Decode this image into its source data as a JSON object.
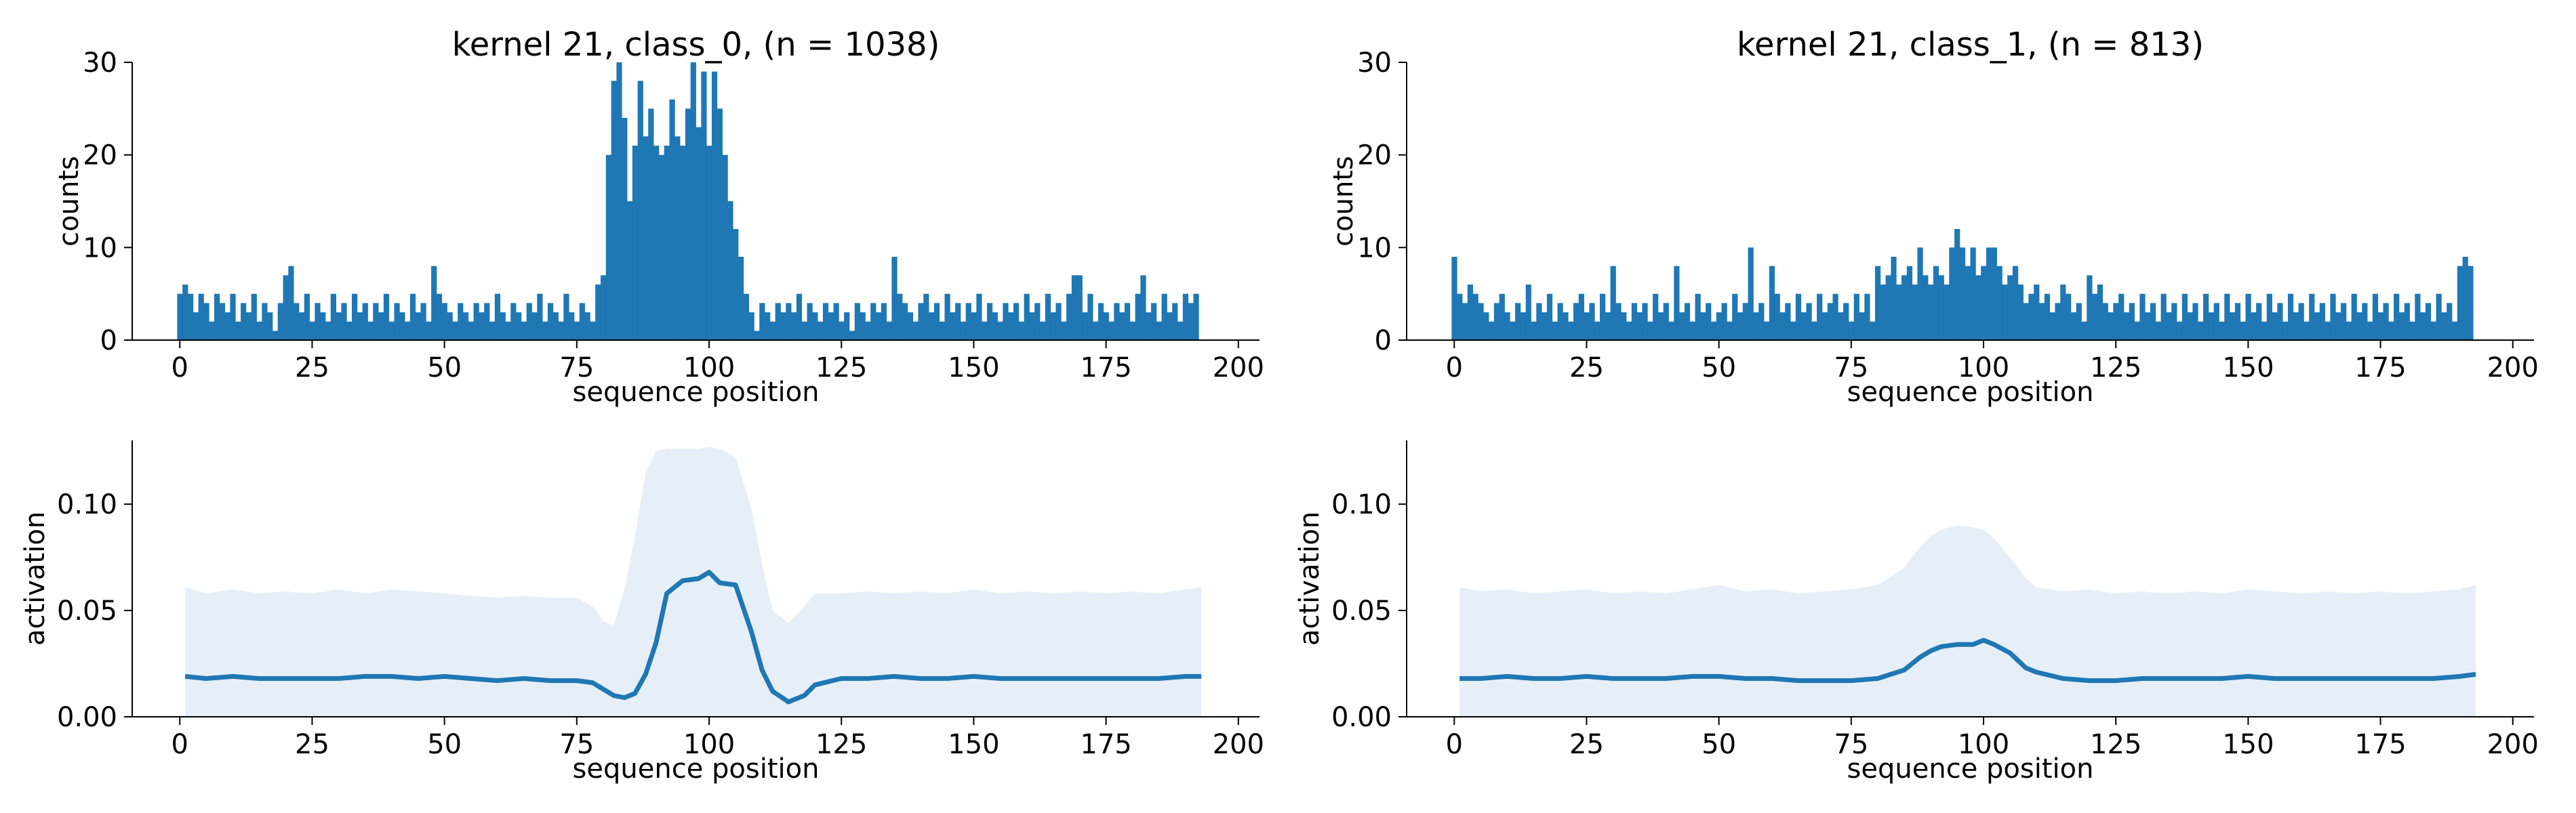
{
  "colors": {
    "bar": "#1f77b4",
    "line": "#1f77b4",
    "band": "#e6eff8",
    "axis": "#000000"
  },
  "chart_data": [
    {
      "type": "bar",
      "title": "kernel 21, class_0, (n = 1038)",
      "xlabel": "sequence position",
      "ylabel": "counts",
      "xlim": [
        -9,
        204
      ],
      "ylim": [
        0,
        30
      ],
      "xticks": [
        0,
        25,
        50,
        75,
        100,
        125,
        150,
        175,
        200
      ],
      "yticks": [
        0,
        10,
        20,
        30
      ],
      "x": [
        0,
        1,
        2,
        3,
        4,
        5,
        6,
        7,
        8,
        9,
        10,
        11,
        12,
        13,
        14,
        15,
        16,
        17,
        18,
        19,
        20,
        21,
        22,
        23,
        24,
        25,
        26,
        27,
        28,
        29,
        30,
        31,
        32,
        33,
        34,
        35,
        36,
        37,
        38,
        39,
        40,
        41,
        42,
        43,
        44,
        45,
        46,
        47,
        48,
        49,
        50,
        51,
        52,
        53,
        54,
        55,
        56,
        57,
        58,
        59,
        60,
        61,
        62,
        63,
        64,
        65,
        66,
        67,
        68,
        69,
        70,
        71,
        72,
        73,
        74,
        75,
        76,
        77,
        78,
        79,
        80,
        81,
        82,
        83,
        84,
        85,
        86,
        87,
        88,
        89,
        90,
        91,
        92,
        93,
        94,
        95,
        96,
        97,
        98,
        99,
        100,
        101,
        102,
        103,
        104,
        105,
        106,
        107,
        108,
        109,
        110,
        111,
        112,
        113,
        114,
        115,
        116,
        117,
        118,
        119,
        120,
        121,
        122,
        123,
        124,
        125,
        126,
        127,
        128,
        129,
        130,
        131,
        132,
        133,
        134,
        135,
        136,
        137,
        138,
        139,
        140,
        141,
        142,
        143,
        144,
        145,
        146,
        147,
        148,
        149,
        150,
        151,
        152,
        153,
        154,
        155,
        156,
        157,
        158,
        159,
        160,
        161,
        162,
        163,
        164,
        165,
        166,
        167,
        168,
        169,
        170,
        171,
        172,
        173,
        174,
        175,
        176,
        177,
        178,
        179,
        180,
        181,
        182,
        183,
        184,
        185,
        186,
        187,
        188,
        189,
        190,
        191,
        192
      ],
      "values": [
        5,
        6,
        5,
        3,
        5,
        4,
        2,
        5,
        4,
        3,
        5,
        2,
        4,
        3,
        5,
        2,
        4,
        3,
        1,
        4,
        7,
        8,
        4,
        3,
        5,
        2,
        4,
        3,
        2,
        5,
        3,
        4,
        2,
        5,
        3,
        4,
        2,
        4,
        3,
        5,
        2,
        4,
        3,
        2,
        5,
        3,
        4,
        2,
        8,
        5,
        4,
        3,
        2,
        4,
        3,
        2,
        4,
        3,
        4,
        2,
        5,
        3,
        2,
        4,
        3,
        2,
        4,
        3,
        5,
        2,
        4,
        3,
        2,
        5,
        3,
        2,
        4,
        3,
        2,
        6,
        7,
        20,
        28,
        30,
        24,
        15,
        21,
        28,
        22,
        25,
        21,
        20,
        21,
        26,
        22,
        21,
        25,
        30,
        23,
        29,
        21,
        29,
        25,
        20,
        15,
        12,
        9,
        5,
        3,
        1,
        4,
        3,
        2,
        4,
        3,
        4,
        3,
        5,
        2,
        4,
        3,
        2,
        4,
        3,
        4,
        2,
        3,
        1,
        4,
        3,
        2,
        4,
        3,
        4,
        2,
        9,
        5,
        4,
        3,
        2,
        4,
        5,
        3,
        4,
        2,
        5,
        3,
        4,
        2,
        4,
        3,
        5,
        2,
        4,
        3,
        2,
        4,
        3,
        4,
        2,
        5,
        3,
        4,
        2,
        5,
        3,
        4,
        2,
        5,
        7,
        7,
        3,
        5,
        2,
        4,
        3,
        2,
        4,
        3,
        4,
        2,
        5,
        7,
        3,
        4,
        2,
        5,
        3,
        4,
        2,
        5,
        4,
        5
      ]
    },
    {
      "type": "bar",
      "title": "kernel 21, class_1, (n = 813)",
      "xlabel": "sequence position",
      "ylabel": "counts",
      "xlim": [
        -9,
        204
      ],
      "ylim": [
        0,
        30
      ],
      "xticks": [
        0,
        25,
        50,
        75,
        100,
        125,
        150,
        175,
        200
      ],
      "yticks": [
        0,
        10,
        20,
        30
      ],
      "x": [
        0,
        1,
        2,
        3,
        4,
        5,
        6,
        7,
        8,
        9,
        10,
        11,
        12,
        13,
        14,
        15,
        16,
        17,
        18,
        19,
        20,
        21,
        22,
        23,
        24,
        25,
        26,
        27,
        28,
        29,
        30,
        31,
        32,
        33,
        34,
        35,
        36,
        37,
        38,
        39,
        40,
        41,
        42,
        43,
        44,
        45,
        46,
        47,
        48,
        49,
        50,
        51,
        52,
        53,
        54,
        55,
        56,
        57,
        58,
        59,
        60,
        61,
        62,
        63,
        64,
        65,
        66,
        67,
        68,
        69,
        70,
        71,
        72,
        73,
        74,
        75,
        76,
        77,
        78,
        79,
        80,
        81,
        82,
        83,
        84,
        85,
        86,
        87,
        88,
        89,
        90,
        91,
        92,
        93,
        94,
        95,
        96,
        97,
        98,
        99,
        100,
        101,
        102,
        103,
        104,
        105,
        106,
        107,
        108,
        109,
        110,
        111,
        112,
        113,
        114,
        115,
        116,
        117,
        118,
        119,
        120,
        121,
        122,
        123,
        124,
        125,
        126,
        127,
        128,
        129,
        130,
        131,
        132,
        133,
        134,
        135,
        136,
        137,
        138,
        139,
        140,
        141,
        142,
        143,
        144,
        145,
        146,
        147,
        148,
        149,
        150,
        151,
        152,
        153,
        154,
        155,
        156,
        157,
        158,
        159,
        160,
        161,
        162,
        163,
        164,
        165,
        166,
        167,
        168,
        169,
        170,
        171,
        172,
        173,
        174,
        175,
        176,
        177,
        178,
        179,
        180,
        181,
        182,
        183,
        184,
        185,
        186,
        187,
        188,
        189,
        190,
        191,
        192
      ],
      "values": [
        9,
        5,
        4,
        6,
        5,
        4,
        3,
        2,
        4,
        5,
        3,
        2,
        4,
        3,
        6,
        2,
        4,
        3,
        5,
        2,
        4,
        3,
        2,
        4,
        5,
        3,
        4,
        2,
        5,
        3,
        8,
        4,
        3,
        2,
        4,
        3,
        4,
        2,
        5,
        3,
        4,
        2,
        8,
        3,
        4,
        2,
        5,
        3,
        4,
        2,
        3,
        4,
        2,
        5,
        3,
        4,
        10,
        3,
        4,
        2,
        8,
        5,
        3,
        4,
        2,
        5,
        3,
        4,
        2,
        5,
        3,
        4,
        5,
        3,
        4,
        2,
        5,
        3,
        5,
        2,
        8,
        6,
        7,
        9,
        6,
        7,
        8,
        6,
        10,
        7,
        6,
        8,
        7,
        6,
        10,
        12,
        10,
        8,
        10,
        7,
        8,
        10,
        10,
        8,
        6,
        7,
        8,
        6,
        4,
        5,
        6,
        4,
        5,
        3,
        4,
        6,
        5,
        3,
        4,
        2,
        7,
        5,
        6,
        4,
        3,
        4,
        5,
        3,
        4,
        2,
        5,
        3,
        4,
        2,
        5,
        3,
        4,
        2,
        5,
        3,
        4,
        2,
        5,
        3,
        4,
        2,
        5,
        3,
        4,
        2,
        5,
        3,
        4,
        2,
        5,
        3,
        4,
        2,
        5,
        3,
        4,
        2,
        5,
        3,
        4,
        2,
        5,
        3,
        4,
        2,
        5,
        3,
        4,
        2,
        5,
        3,
        4,
        2,
        5,
        3,
        4,
        2,
        5,
        3,
        4,
        2,
        5,
        3,
        4,
        2,
        8,
        9,
        8
      ]
    },
    {
      "type": "line",
      "xlabel": "sequence position",
      "ylabel": "activation",
      "xlim": [
        -9,
        204
      ],
      "ylim": [
        0,
        0.13
      ],
      "xticks": [
        0,
        25,
        50,
        75,
        100,
        125,
        150,
        175,
        200
      ],
      "yticks": [
        0.0,
        0.05,
        0.1
      ],
      "ytick_labels": [
        "0.00",
        "0.05",
        "0.10"
      ],
      "x": [
        1,
        5,
        10,
        15,
        20,
        25,
        30,
        35,
        40,
        45,
        50,
        55,
        60,
        65,
        70,
        75,
        78,
        80,
        82,
        84,
        86,
        88,
        90,
        92,
        95,
        98,
        100,
        102,
        105,
        108,
        110,
        112,
        115,
        118,
        120,
        125,
        130,
        135,
        140,
        145,
        150,
        155,
        160,
        165,
        170,
        175,
        180,
        185,
        190,
        193
      ],
      "series": [
        {
          "values": [
            0.019,
            0.018,
            0.019,
            0.018,
            0.018,
            0.018,
            0.018,
            0.019,
            0.019,
            0.018,
            0.019,
            0.018,
            0.017,
            0.018,
            0.017,
            0.017,
            0.016,
            0.013,
            0.01,
            0.009,
            0.011,
            0.02,
            0.035,
            0.058,
            0.064,
            0.065,
            0.068,
            0.063,
            0.062,
            0.04,
            0.022,
            0.012,
            0.007,
            0.01,
            0.015,
            0.018,
            0.018,
            0.019,
            0.018,
            0.018,
            0.019,
            0.018,
            0.018,
            0.018,
            0.018,
            0.018,
            0.018,
            0.018,
            0.019,
            0.019
          ],
          "band_lower": [
            0,
            0,
            0,
            0,
            0,
            0,
            0,
            0,
            0,
            0,
            0,
            0,
            0,
            0,
            0,
            0,
            0,
            0,
            0,
            0,
            0,
            0,
            0,
            0,
            0,
            0,
            0,
            0,
            0,
            0,
            0,
            0,
            0,
            0,
            0,
            0,
            0,
            0,
            0,
            0,
            0,
            0,
            0,
            0,
            0,
            0,
            0,
            0,
            0,
            0
          ],
          "band_upper": [
            0.061,
            0.058,
            0.06,
            0.058,
            0.059,
            0.058,
            0.06,
            0.058,
            0.06,
            0.059,
            0.058,
            0.057,
            0.056,
            0.057,
            0.056,
            0.056,
            0.052,
            0.045,
            0.043,
            0.06,
            0.085,
            0.115,
            0.125,
            0.126,
            0.126,
            0.126,
            0.127,
            0.126,
            0.122,
            0.098,
            0.072,
            0.05,
            0.044,
            0.052,
            0.058,
            0.058,
            0.059,
            0.058,
            0.059,
            0.058,
            0.06,
            0.058,
            0.059,
            0.058,
            0.059,
            0.058,
            0.059,
            0.058,
            0.06,
            0.061
          ]
        }
      ]
    },
    {
      "type": "line",
      "xlabel": "sequence position",
      "ylabel": "activation",
      "xlim": [
        -9,
        204
      ],
      "ylim": [
        0,
        0.13
      ],
      "xticks": [
        0,
        25,
        50,
        75,
        100,
        125,
        150,
        175,
        200
      ],
      "yticks": [
        0.0,
        0.05,
        0.1
      ],
      "ytick_labels": [
        "0.00",
        "0.05",
        "0.10"
      ],
      "x": [
        1,
        5,
        10,
        15,
        20,
        25,
        30,
        35,
        40,
        45,
        50,
        55,
        60,
        65,
        70,
        75,
        80,
        85,
        88,
        90,
        92,
        95,
        98,
        100,
        102,
        105,
        108,
        110,
        115,
        120,
        125,
        130,
        135,
        140,
        145,
        150,
        155,
        160,
        165,
        170,
        175,
        180,
        185,
        190,
        193
      ],
      "series": [
        {
          "values": [
            0.018,
            0.018,
            0.019,
            0.018,
            0.018,
            0.019,
            0.018,
            0.018,
            0.018,
            0.019,
            0.019,
            0.018,
            0.018,
            0.017,
            0.017,
            0.017,
            0.018,
            0.022,
            0.028,
            0.031,
            0.033,
            0.034,
            0.034,
            0.036,
            0.034,
            0.03,
            0.023,
            0.021,
            0.018,
            0.017,
            0.017,
            0.018,
            0.018,
            0.018,
            0.018,
            0.019,
            0.018,
            0.018,
            0.018,
            0.018,
            0.018,
            0.018,
            0.018,
            0.019,
            0.02
          ],
          "band_lower": [
            0,
            0,
            0,
            0,
            0,
            0,
            0,
            0,
            0,
            0,
            0,
            0,
            0,
            0,
            0,
            0,
            0,
            0,
            0,
            0,
            0,
            0,
            0,
            0,
            0,
            0,
            0,
            0,
            0,
            0,
            0,
            0,
            0,
            0,
            0,
            0,
            0,
            0,
            0,
            0,
            0,
            0,
            0,
            0,
            0
          ],
          "band_upper": [
            0.061,
            0.059,
            0.06,
            0.058,
            0.059,
            0.06,
            0.058,
            0.059,
            0.058,
            0.06,
            0.062,
            0.059,
            0.06,
            0.058,
            0.059,
            0.06,
            0.062,
            0.07,
            0.08,
            0.085,
            0.088,
            0.09,
            0.089,
            0.088,
            0.084,
            0.075,
            0.065,
            0.061,
            0.059,
            0.06,
            0.058,
            0.059,
            0.058,
            0.059,
            0.058,
            0.06,
            0.059,
            0.058,
            0.059,
            0.058,
            0.059,
            0.058,
            0.059,
            0.06,
            0.062
          ]
        }
      ]
    }
  ]
}
